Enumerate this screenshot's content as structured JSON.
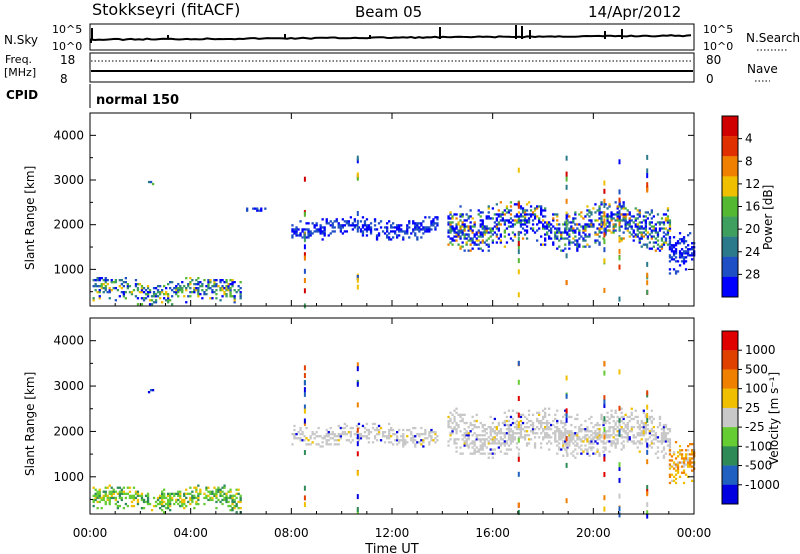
{
  "header": {
    "station": "Stokkseyri (fitACF)",
    "beam": "Beam 05",
    "date": "14/Apr/2012"
  },
  "noise_panel": {
    "left_label": "N.Sky",
    "right_label": "N.Search",
    "left_ticks": [
      "10^5",
      "10^0"
    ],
    "right_ticks": [
      "10^5",
      "10^0"
    ]
  },
  "freq_panel": {
    "left_label_line1": "Freq.",
    "left_label_line2": "[MHz]",
    "right_label": "Nave",
    "left_ticks": [
      "18",
      "8"
    ],
    "right_ticks": [
      "80",
      "0"
    ],
    "cpid_label": "CPID",
    "cpid_value": "normal 150"
  },
  "chart_data": [
    {
      "type": "heatmap",
      "name": "power",
      "xlabel": "",
      "ylabel": "Slant Range [km]",
      "xlim": [
        0,
        24
      ],
      "ylim": [
        180,
        4500
      ],
      "x_tick_labels": [
        "00:00",
        "04:00",
        "08:00",
        "12:00",
        "16:00",
        "20:00",
        "00:00"
      ],
      "y_ticks": [
        1000,
        2000,
        3000,
        4000
      ],
      "colorbar": {
        "label": "Power [dB]",
        "ticks": [
          "4",
          "8",
          "12",
          "16",
          "20",
          "24",
          "28"
        ],
        "colors": [
          "#0000ff",
          "#1e4fc4",
          "#2b7a8c",
          "#3f9f5e",
          "#55b832",
          "#f0c000",
          "#f08000",
          "#e03000",
          "#d00000"
        ]
      },
      "regions": [
        {
          "t0": 0.1,
          "t1": 6.0,
          "r0": 200,
          "r1": 800,
          "level": "mixed"
        },
        {
          "t0": 2.3,
          "t1": 2.5,
          "r0": 2800,
          "r1": 3100,
          "level": "mixed"
        },
        {
          "t0": 6.2,
          "t1": 7.0,
          "r0": 2250,
          "r1": 2400,
          "level": "low"
        },
        {
          "t0": 8.0,
          "t1": 13.8,
          "r0": 1650,
          "r1": 2150,
          "level": "low"
        },
        {
          "t0": 14.2,
          "t1": 23.0,
          "r0": 1400,
          "r1": 2500,
          "level": "high"
        },
        {
          "t0": 23.0,
          "t1": 24.0,
          "r0": 800,
          "r1": 1800,
          "level": "low"
        }
      ]
    },
    {
      "type": "heatmap",
      "name": "velocity",
      "xlabel": "Time UT",
      "ylabel": "Slant Range [km]",
      "xlim": [
        0,
        24
      ],
      "ylim": [
        180,
        4500
      ],
      "x_tick_labels": [
        "00:00",
        "04:00",
        "08:00",
        "12:00",
        "16:00",
        "20:00",
        "00:00"
      ],
      "y_ticks": [
        1000,
        2000,
        3000,
        4000
      ],
      "colorbar": {
        "label": "Velocity [m s⁻¹]",
        "ticks": [
          "1000",
          "500",
          "100",
          "25",
          "-25",
          "-100",
          "-500",
          "-1000"
        ],
        "colors": [
          "#0000e0",
          "#2060c0",
          "#2e8b57",
          "#66cc33",
          "#c8c8c8",
          "#f0c000",
          "#f08000",
          "#e04000",
          "#e00000"
        ]
      },
      "regions": [
        {
          "t0": 0.1,
          "t1": 6.0,
          "r0": 200,
          "r1": 800,
          "level": "green"
        },
        {
          "t0": 2.3,
          "t1": 2.5,
          "r0": 2800,
          "r1": 3100,
          "level": "blue"
        },
        {
          "t0": 8.0,
          "t1": 13.8,
          "r0": 1650,
          "r1": 2150,
          "level": "grey"
        },
        {
          "t0": 14.2,
          "t1": 23.0,
          "r0": 1400,
          "r1": 2500,
          "level": "grey"
        },
        {
          "t0": 23.0,
          "t1": 24.0,
          "r0": 800,
          "r1": 1800,
          "level": "orange"
        }
      ]
    }
  ]
}
